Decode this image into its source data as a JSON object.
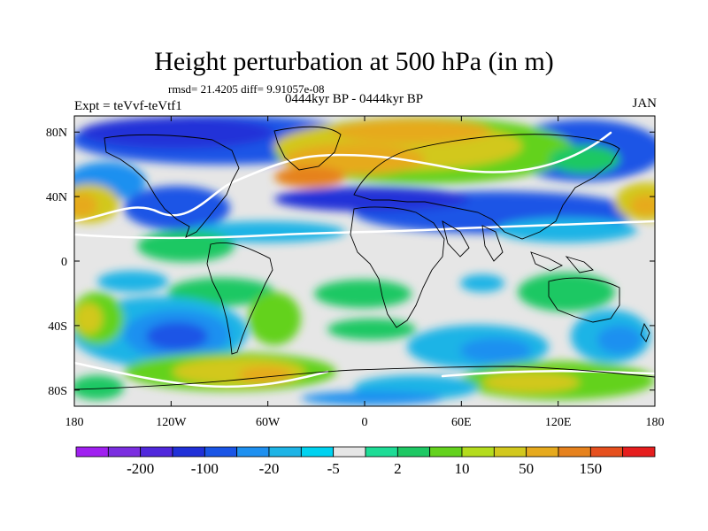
{
  "title": "Height perturbation at 500 hPa (in m)",
  "stats": "rmsd= 21.4205 diff= 9.91057e-08",
  "experiment": "Expt = teVvf-teVtf1",
  "period": "0444kyr BP - 0444kyr BP",
  "month": "JAN",
  "map": {
    "lon_range": [
      -180,
      180
    ],
    "lat_range": [
      -90,
      90
    ],
    "x_ticks": [
      {
        "value": -180,
        "label": "180"
      },
      {
        "value": -120,
        "label": "120W"
      },
      {
        "value": -60,
        "label": "60W"
      },
      {
        "value": 0,
        "label": "0"
      },
      {
        "value": 60,
        "label": "60E"
      },
      {
        "value": 120,
        "label": "120E"
      },
      {
        "value": 180,
        "label": "180"
      }
    ],
    "y_ticks": [
      {
        "value": 80,
        "label": "80N"
      },
      {
        "value": 40,
        "label": "40N"
      },
      {
        "value": 0,
        "label": "0"
      },
      {
        "value": -40,
        "label": "40S"
      },
      {
        "value": -80,
        "label": "80S"
      }
    ],
    "colorbar": {
      "colors": [
        "#a020f0",
        "#7b2ee0",
        "#5028dc",
        "#2030d8",
        "#1a55e6",
        "#1e90f0",
        "#1eb4e6",
        "#00d2f0",
        "#e6e6e6",
        "#1edc96",
        "#1ec864",
        "#64d21e",
        "#b4dc1e",
        "#d2c81e",
        "#e6aa1e",
        "#e6821e",
        "#e6501e",
        "#e61e1e"
      ],
      "labels": [
        "-200",
        "-100",
        "-20",
        "-5",
        "2",
        "10",
        "50",
        "150"
      ]
    }
  }
}
